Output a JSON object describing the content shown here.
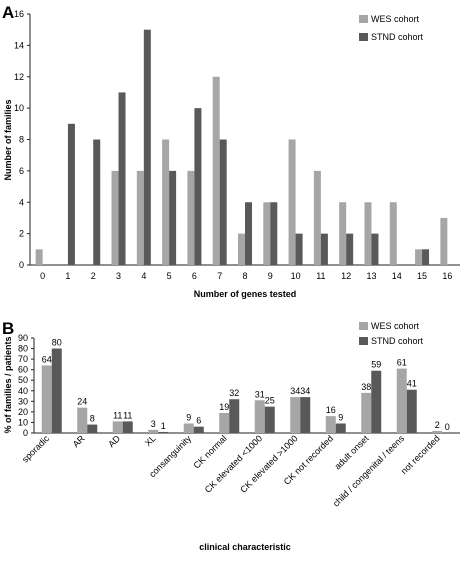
{
  "colors": {
    "wes": "#a6a6a6",
    "stnd": "#595959"
  },
  "chart_data": [
    {
      "panel": "A",
      "type": "bar",
      "xlabel": "Number of genes tested",
      "ylabel": "Number of families",
      "ylim": [
        0,
        16
      ],
      "yticks": [
        "0",
        "2",
        "4",
        "6",
        "8",
        "10",
        "12",
        "14",
        "16"
      ],
      "categories": [
        "0",
        "1",
        "2",
        "3",
        "4",
        "5",
        "6",
        "7",
        "8",
        "9",
        "10",
        "11",
        "12",
        "13",
        "14",
        "15",
        "16"
      ],
      "legend": "top-right",
      "grid": false,
      "series": [
        {
          "name": "WES cohort",
          "values": [
            1,
            0,
            0,
            6,
            6,
            8,
            6,
            12,
            2,
            4,
            8,
            6,
            4,
            4,
            4,
            1,
            3
          ]
        },
        {
          "name": "STND cohort",
          "values": [
            0,
            9,
            8,
            11,
            15,
            6,
            10,
            8,
            4,
            4,
            2,
            2,
            2,
            2,
            0,
            1,
            0
          ]
        }
      ]
    },
    {
      "panel": "B",
      "type": "bar",
      "xlabel": "clinical characteristic",
      "ylabel": "% of families / patients",
      "ylim": [
        0,
        90
      ],
      "yticks": [
        "0",
        "10",
        "20",
        "30",
        "40",
        "50",
        "60",
        "70",
        "80",
        "90"
      ],
      "categories": [
        "sporadic",
        "AR",
        "AD",
        "XL",
        "consanguinity",
        "CK normal",
        "CK elevated <1000",
        "CK elevated >1000",
        "CK not recorded",
        "adult onset",
        "child / congenital / teens",
        "not recorded"
      ],
      "legend": "top-right",
      "grid": false,
      "series": [
        {
          "name": "WES cohort",
          "values": [
            64,
            24,
            11,
            3,
            9,
            19,
            31,
            34,
            16,
            38,
            61,
            2
          ],
          "labels": [
            "64",
            "24",
            "11",
            "3",
            "9",
            "19",
            "31",
            "34",
            "16",
            "38",
            "61",
            "2"
          ]
        },
        {
          "name": "STND cohort",
          "values": [
            80,
            8,
            11,
            1,
            6,
            32,
            25,
            34,
            9,
            59,
            41,
            0
          ],
          "labels": [
            "80",
            "8",
            "11",
            "1",
            "6",
            "32",
            "25",
            "34",
            "9",
            "59",
            "41",
            "0"
          ]
        }
      ]
    }
  ]
}
